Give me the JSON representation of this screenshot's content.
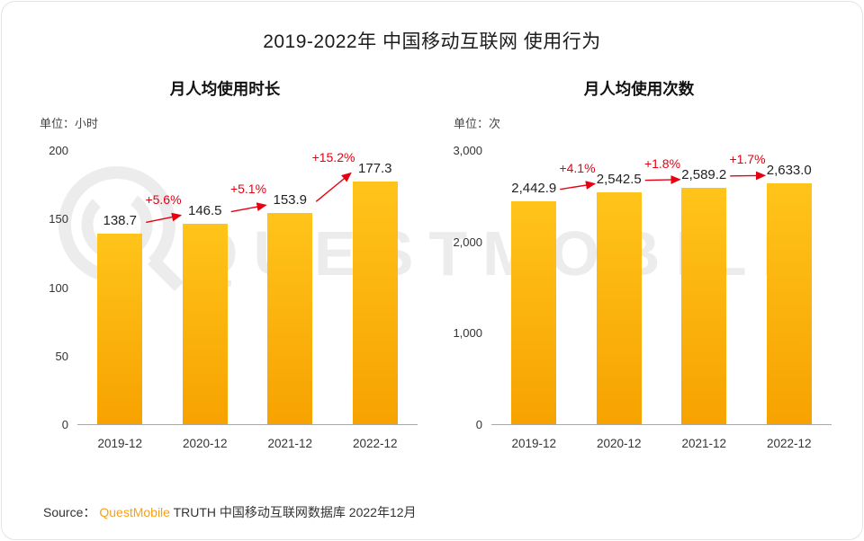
{
  "page": {
    "title": "2019-2022年 中国移动互联网 使用行为",
    "watermark_text": "QUESTMOBILE",
    "source_prefix": "Source：",
    "source_brand": "QuestMobile",
    "source_suffix": " TRUTH 中国移动互联网数据库 2022年12月"
  },
  "colors": {
    "bar_top": "#ffc41a",
    "bar_bottom": "#f7a200",
    "growth": "#e60012",
    "brand": "#f7a11a",
    "axis": "#333333"
  },
  "chart_data": [
    {
      "type": "bar",
      "title": "月人均使用时长",
      "unit_label": "单位：小时",
      "categories": [
        "2019-12",
        "2020-12",
        "2021-12",
        "2022-12"
      ],
      "values": [
        138.7,
        146.5,
        153.9,
        177.3
      ],
      "value_labels": [
        "138.7",
        "146.5",
        "153.9",
        "177.3"
      ],
      "growth_labels": [
        "+5.6%",
        "+5.1%",
        "+15.2%"
      ],
      "xlabel": "",
      "ylabel": "",
      "ylim": [
        0,
        200
      ],
      "yticks": [
        "0",
        "50",
        "100",
        "150",
        "200"
      ],
      "grid": false,
      "legend": "none"
    },
    {
      "type": "bar",
      "title": "月人均使用次数",
      "unit_label": "单位：次",
      "categories": [
        "2019-12",
        "2020-12",
        "2021-12",
        "2022-12"
      ],
      "values": [
        2442.9,
        2542.5,
        2589.2,
        2633.0
      ],
      "value_labels": [
        "2,442.9",
        "2,542.5",
        "2,589.2",
        "2,633.0"
      ],
      "growth_labels": [
        "+4.1%",
        "+1.8%",
        "+1.7%"
      ],
      "xlabel": "",
      "ylabel": "",
      "ylim": [
        0,
        3000
      ],
      "yticks": [
        "0",
        "1,000",
        "2,000",
        "3,000"
      ],
      "grid": false,
      "legend": "none"
    }
  ]
}
